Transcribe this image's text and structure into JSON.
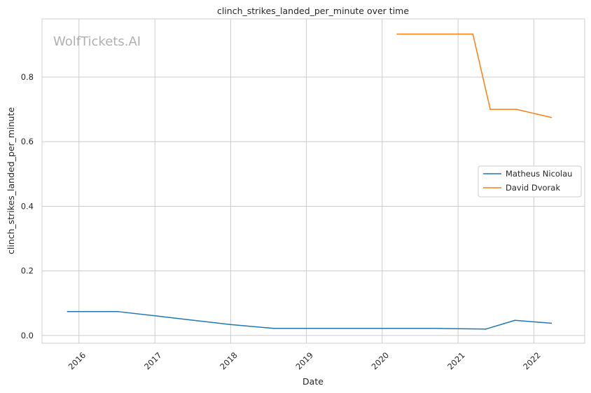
{
  "chart_data": {
    "type": "line",
    "title": "clinch_strikes_landed_per_minute over time",
    "xlabel": "Date",
    "ylabel": "clinch_strikes_landed_per_minute",
    "watermark": "WolfTickets.AI",
    "x_ticks": [
      "2016",
      "2017",
      "2018",
      "2019",
      "2020",
      "2021",
      "2022"
    ],
    "y_ticks": [
      "0.0",
      "0.2",
      "0.4",
      "0.6",
      "0.8"
    ],
    "xlim": [
      "2015-07-07",
      "2022-09-03"
    ],
    "ylim": [
      -0.024,
      0.98
    ],
    "grid": true,
    "legend_position": "center-right",
    "series": [
      {
        "name": "Matheus Nicolau",
        "color": "#1f77b4",
        "points": [
          [
            "2015-11-07",
            0.074
          ],
          [
            "2016-07-07",
            0.074
          ],
          [
            "2017-01-15",
            0.06
          ],
          [
            "2017-12-30",
            0.034
          ],
          [
            "2018-07-28",
            0.022
          ],
          [
            "2020-09-19",
            0.022
          ],
          [
            "2021-05-15",
            0.02
          ],
          [
            "2021-10-02",
            0.047
          ],
          [
            "2022-03-26",
            0.038
          ]
        ]
      },
      {
        "name": "David Dvorak",
        "color": "#ff7f0e",
        "points": [
          [
            "2020-03-14",
            0.933
          ],
          [
            "2021-03-13",
            0.933
          ],
          [
            "2021-06-05",
            0.7
          ],
          [
            "2021-10-09",
            0.7
          ],
          [
            "2022-03-26",
            0.675
          ]
        ]
      }
    ]
  }
}
